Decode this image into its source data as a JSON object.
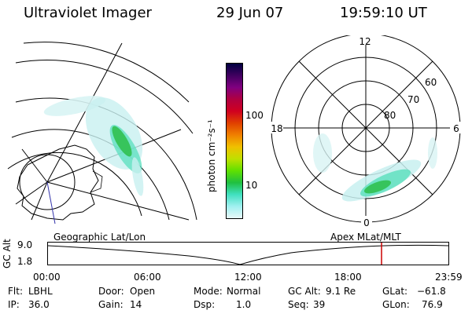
{
  "header": {
    "instrument": "Ultraviolet Imager",
    "date": "29 Jun 07",
    "time": "19:59:10 UT"
  },
  "colorbar": {
    "unit_label": "photon cm⁻²s⁻¹",
    "ticks": [
      "100",
      "10"
    ],
    "colors": [
      "#000040",
      "#400060",
      "#800080",
      "#b00040",
      "#d00020",
      "#e04000",
      "#f08000",
      "#f0c000",
      "#c0e000",
      "#60e000",
      "#20c040",
      "#40e0c0",
      "#a0f0f0",
      "#e8f8f8"
    ]
  },
  "geo_map": {
    "label": "Geographic Lat/Lon"
  },
  "polar_map": {
    "label": "Apex MLat/MLT",
    "mlt_labels": {
      "top": "12",
      "left": "18",
      "right": "6",
      "bottom": "0"
    },
    "lat_labels": [
      "60",
      "70",
      "80"
    ]
  },
  "altitude_plot": {
    "axis_title": "GC Alt",
    "y_ticks": [
      "9.0",
      "1.8"
    ],
    "x_ticks": [
      "00:00",
      "06:00",
      "12:00",
      "18:00",
      "23:59"
    ],
    "marker_color": "#cc0000",
    "current_time_fraction": 0.833
  },
  "status": {
    "flt_label": "Flt:",
    "flt_value": "LBHL",
    "ip_label": "IP:",
    "ip_value": "36.0",
    "door_label": "Door:",
    "door_value": "Open",
    "gain_label": "Gain:",
    "gain_value": "14",
    "mode_label": "Mode:",
    "mode_value": "Normal",
    "dsp_label": "Dsp:",
    "dsp_value": "1.0",
    "gcalt_label": "GC Alt:",
    "gcalt_value": "9.1 Re",
    "seq_label": "Seq:",
    "seq_value": "39",
    "glat_label": "GLat:",
    "glat_value": "−61.8",
    "glon_label": "GLon:",
    "glon_value": "76.9"
  }
}
